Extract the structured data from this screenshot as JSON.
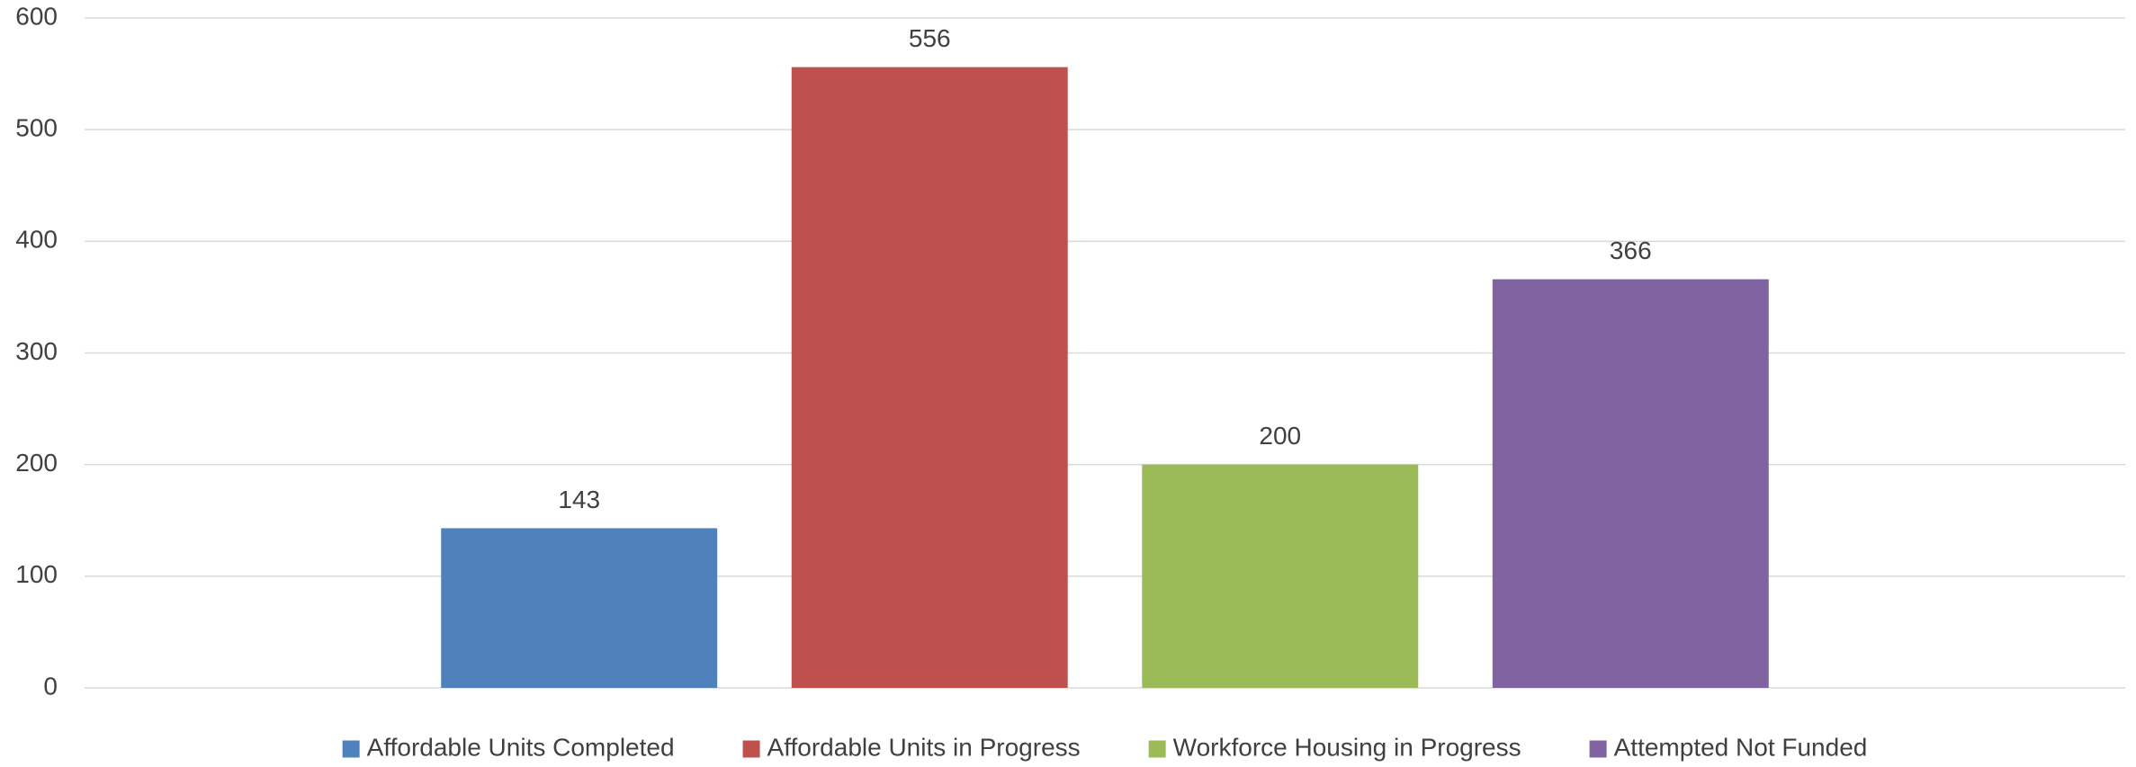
{
  "chart_data": {
    "type": "bar",
    "categories": [
      null
    ],
    "series": [
      {
        "name": "Affordable Units Completed",
        "color": "#4f81bd",
        "values": [
          143
        ]
      },
      {
        "name": "Affordable Units in Progress",
        "color": "#c0504d",
        "values": [
          556
        ]
      },
      {
        "name": "Workforce Housing in Progress",
        "color": "#9bbb59",
        "values": [
          200
        ]
      },
      {
        "name": "Attempted Not Funded",
        "color": "#8064a2",
        "values": [
          366
        ]
      }
    ],
    "ylim": [
      0,
      600
    ],
    "yticks": [
      0,
      100,
      200,
      300,
      400,
      500,
      600
    ],
    "grid": true,
    "data_labels": true,
    "legend": "bottom"
  }
}
